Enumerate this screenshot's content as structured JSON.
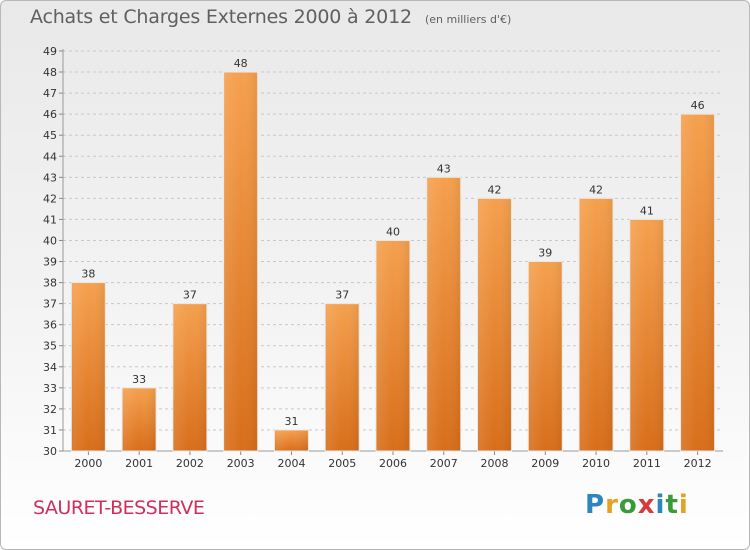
{
  "header": {
    "title": "Achats et Charges Externes 2000 à 2012",
    "unit": "(en milliers d'€)"
  },
  "footer": {
    "commune": "SAURET-BESSERVE",
    "logo_letters": [
      {
        "char": "P",
        "color": "#2e86c1"
      },
      {
        "char": "r",
        "color": "#e8a020"
      },
      {
        "char": "o",
        "color": "#3a9a3a"
      },
      {
        "char": "x",
        "color": "#d63a3a"
      },
      {
        "char": "i",
        "color": "#2e86c1"
      },
      {
        "char": "t",
        "color": "#3a9a3a"
      },
      {
        "char": "i",
        "color": "#e8a020"
      }
    ]
  },
  "chart_data": {
    "type": "bar",
    "categories": [
      "2000",
      "2001",
      "2002",
      "2003",
      "2004",
      "2005",
      "2006",
      "2007",
      "2008",
      "2009",
      "2010",
      "2011",
      "2012"
    ],
    "values": [
      38,
      33,
      37,
      48,
      31,
      37,
      40,
      43,
      42,
      39,
      42,
      41,
      46
    ],
    "data_labels": [
      "38",
      "33",
      "37",
      "48",
      "31",
      "37",
      "40",
      "43",
      "42",
      "39",
      "42",
      "41",
      "46"
    ],
    "ylim": [
      30,
      49
    ],
    "yticks": [
      30,
      31,
      32,
      33,
      34,
      35,
      36,
      37,
      38,
      39,
      40,
      41,
      42,
      43,
      44,
      45,
      46,
      47,
      48,
      49
    ],
    "grid": "horizontal-dashed",
    "bar_color_top": "#f5a04e",
    "bar_color_bottom": "#d86e1a",
    "title": "Achats et Charges Externes 2000 à 2012",
    "xlabel": "",
    "ylabel": ""
  }
}
